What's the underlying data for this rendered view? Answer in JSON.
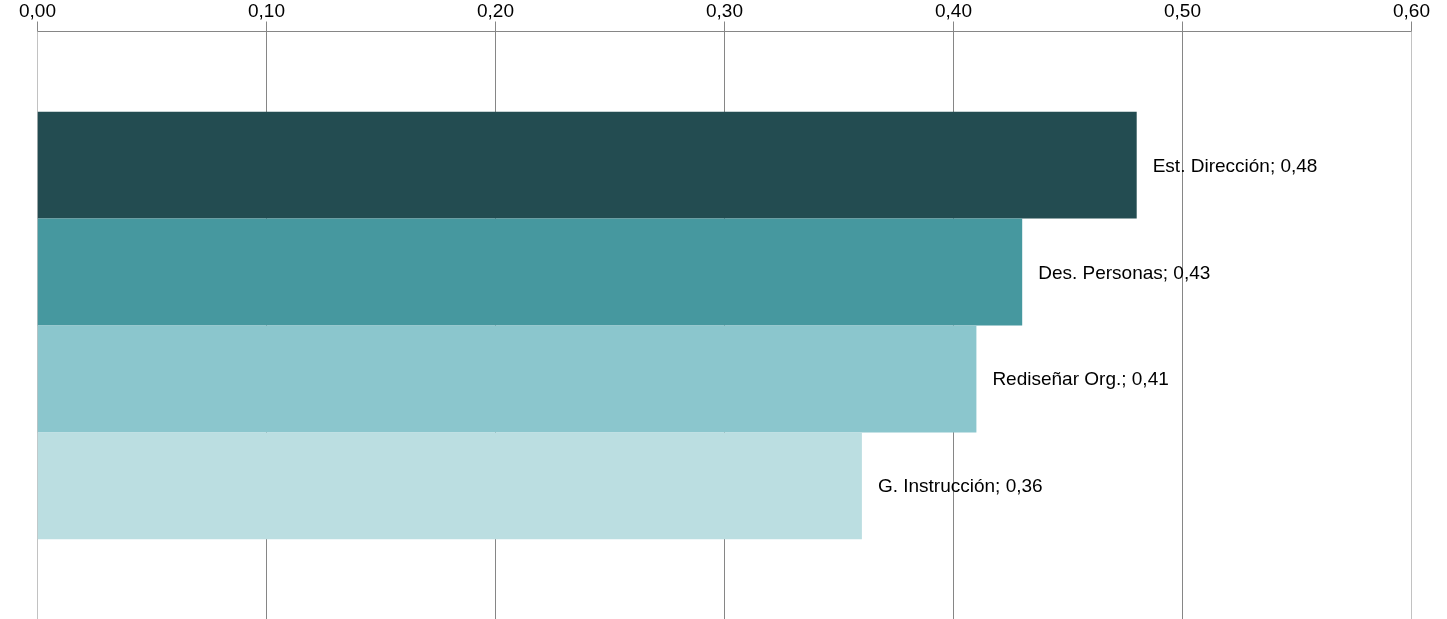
{
  "chart_data": {
    "type": "bar",
    "orientation": "horizontal",
    "categories": [
      null,
      null,
      null,
      null
    ],
    "values": [
      0.48,
      0.43,
      0.41,
      0.36
    ],
    "colors": [
      "#234c51",
      "#46989f",
      "#8bc6cd",
      "#bbdee1"
    ],
    "value_labels": [
      "Est. Dirección; 0,48",
      "Des. Personas; 0,43",
      "Rediseñar Org.; 0,41",
      "G. Instrucción; 0,36"
    ],
    "xlim": [
      0,
      0.6
    ],
    "xticks": [
      {
        "value": 0,
        "label": "0,00"
      },
      {
        "value": 0.1,
        "label": "0,10"
      },
      {
        "value": 0.2,
        "label": "0,20"
      },
      {
        "value": 0.3,
        "label": "0,30"
      },
      {
        "value": 0.4,
        "label": "0,40"
      },
      {
        "value": 0.5,
        "label": "0,50"
      },
      {
        "value": 0.6,
        "label": "0,60"
      }
    ],
    "grid": "x",
    "tick_labels": "x"
  }
}
